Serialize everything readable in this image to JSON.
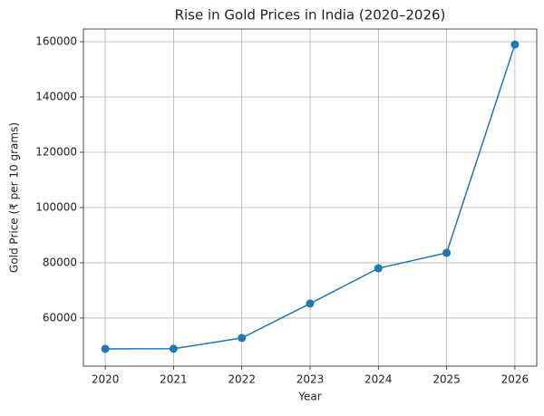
{
  "chart_data": {
    "type": "line",
    "title": "Rise in Gold Prices in India (2020–2026)",
    "x_label": "Year",
    "y_label": "Gold Price (₹ per 10 grams)",
    "x": [
      2020,
      2021,
      2022,
      2023,
      2024,
      2025,
      2026
    ],
    "series": [
      {
        "name": "Gold Price",
        "color": "#1f77b4",
        "values": [
          48850,
          48900,
          52800,
          65250,
          78000,
          83600,
          159000
        ]
      }
    ],
    "xlim": [
      2019.68,
      2026.32
    ],
    "xticks": [
      2020,
      2021,
      2022,
      2023,
      2024,
      2025,
      2026
    ],
    "ylim": [
      42600,
      164600
    ],
    "yticks": [
      60000,
      80000,
      100000,
      120000,
      140000,
      160000
    ],
    "grid": true
  }
}
